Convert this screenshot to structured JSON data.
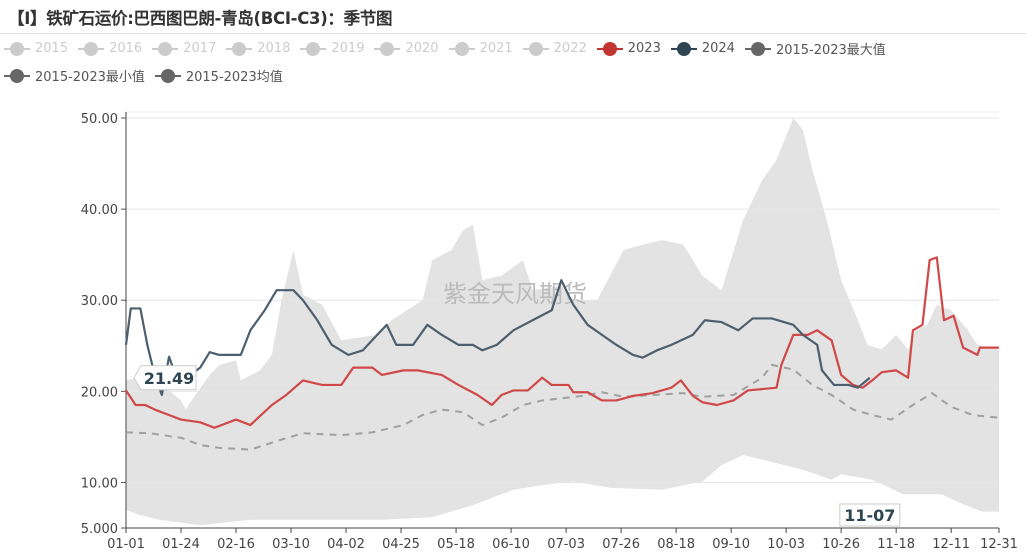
{
  "title": "【I】铁矿石运价:巴西图巴朗-青岛(BCI-C3)：季节图",
  "watermark": "紫金天风期货",
  "legend": [
    {
      "label": "2015",
      "color": "#cccccc",
      "active": false
    },
    {
      "label": "2016",
      "color": "#cccccc",
      "active": false
    },
    {
      "label": "2017",
      "color": "#cccccc",
      "active": false
    },
    {
      "label": "2018",
      "color": "#cccccc",
      "active": false
    },
    {
      "label": "2019",
      "color": "#cccccc",
      "active": false
    },
    {
      "label": "2020",
      "color": "#cccccc",
      "active": false
    },
    {
      "label": "2021",
      "color": "#cccccc",
      "active": false
    },
    {
      "label": "2022",
      "color": "#cccccc",
      "active": false
    },
    {
      "label": "2023",
      "color": "#c23531",
      "active": true
    },
    {
      "label": "2024",
      "color": "#2f4554",
      "active": true
    },
    {
      "label": "2015-2023最大值",
      "color": "#666666",
      "active": true
    },
    {
      "label": "2015-2023最小值",
      "color": "#666666",
      "active": true
    },
    {
      "label": "2015-2023均值",
      "color": "#666666",
      "active": true
    }
  ],
  "crosshair": {
    "x_label": "11-07",
    "y_label": "21.49"
  },
  "chart_data": {
    "type": "line",
    "title": "【I】铁矿石运价:巴西图巴朗-青岛(BCI-C3)：季节图",
    "xlabel": "",
    "ylabel": "",
    "ylim": [
      5,
      50
    ],
    "xlim": [
      "01-01",
      "12-31"
    ],
    "y_ticks": [
      "5.000",
      "10.00",
      "20.00",
      "30.00",
      "40.00",
      "50.00"
    ],
    "y_tick_values": [
      5,
      10,
      20,
      30,
      40,
      50
    ],
    "x_ticks": [
      "01-01",
      "01-24",
      "02-16",
      "03-10",
      "04-02",
      "04-25",
      "05-18",
      "06-10",
      "07-03",
      "07-26",
      "08-18",
      "09-10",
      "10-03",
      "10-26",
      "11-18",
      "12-11",
      "12-31"
    ],
    "grid": true,
    "legend_placement": "top",
    "band": {
      "max": [
        [
          "01-01",
          21.2
        ],
        [
          "01-11",
          21.8
        ],
        [
          "01-19",
          20.1
        ],
        [
          "01-24",
          19.0
        ],
        [
          "01-26",
          18.0
        ],
        [
          "01-30",
          19.6
        ],
        [
          "02-05",
          21.8
        ],
        [
          "02-09",
          22.9
        ],
        [
          "02-16",
          23.4
        ],
        [
          "02-18",
          21.2
        ],
        [
          "02-26",
          22.3
        ],
        [
          "03-02",
          24.0
        ],
        [
          "03-06",
          30.0
        ],
        [
          "03-11",
          35.5
        ],
        [
          "03-15",
          30.6
        ],
        [
          "03-23",
          29.5
        ],
        [
          "03-31",
          25.6
        ],
        [
          "04-15",
          26.2
        ],
        [
          "04-21",
          27.8
        ],
        [
          "05-04",
          30.0
        ],
        [
          "05-08",
          34.4
        ],
        [
          "05-16",
          35.5
        ],
        [
          "05-21",
          37.7
        ],
        [
          "05-25",
          38.3
        ],
        [
          "05-29",
          32.2
        ],
        [
          "06-06",
          32.7
        ],
        [
          "06-15",
          34.4
        ],
        [
          "06-19",
          31.1
        ],
        [
          "07-01",
          31.6
        ],
        [
          "07-06",
          30.0
        ],
        [
          "07-16",
          30.0
        ],
        [
          "07-27",
          35.5
        ],
        [
          "08-04",
          36.1
        ],
        [
          "08-12",
          36.6
        ],
        [
          "08-21",
          36.1
        ],
        [
          "08-29",
          32.7
        ],
        [
          "09-06",
          31.1
        ],
        [
          "09-15",
          38.8
        ],
        [
          "09-23",
          43.2
        ],
        [
          "09-29",
          45.4
        ],
        [
          "10-06",
          50.0
        ],
        [
          "10-10",
          48.7
        ],
        [
          "10-14",
          44.3
        ],
        [
          "10-20",
          38.8
        ],
        [
          "10-26",
          32.2
        ],
        [
          "11-02",
          27.8
        ],
        [
          "11-06",
          25.1
        ],
        [
          "11-12",
          24.6
        ],
        [
          "11-18",
          26.2
        ],
        [
          "11-23",
          24.6
        ],
        [
          "11-26",
          26.7
        ],
        [
          "12-01",
          27.3
        ],
        [
          "12-05",
          29.5
        ],
        [
          "12-11",
          28.9
        ],
        [
          "12-18",
          26.7
        ],
        [
          "12-22",
          25.1
        ],
        [
          "12-31",
          24.6
        ]
      ],
      "min": [
        [
          "01-01",
          7.0
        ],
        [
          "01-07",
          6.4
        ],
        [
          "01-15",
          5.9
        ],
        [
          "02-01",
          5.3
        ],
        [
          "02-22",
          5.9
        ],
        [
          "03-15",
          5.9
        ],
        [
          "04-17",
          5.9
        ],
        [
          "05-08",
          6.2
        ],
        [
          "05-25",
          7.5
        ],
        [
          "06-02",
          8.3
        ],
        [
          "06-11",
          9.2
        ],
        [
          "06-23",
          9.7
        ],
        [
          "07-06",
          10.1
        ],
        [
          "07-22",
          9.4
        ],
        [
          "08-12",
          9.2
        ],
        [
          "08-29",
          10.1
        ],
        [
          "09-06",
          11.9
        ],
        [
          "09-15",
          13.0
        ],
        [
          "09-23",
          12.5
        ],
        [
          "10-10",
          11.4
        ],
        [
          "10-22",
          10.3
        ],
        [
          "10-26",
          10.9
        ],
        [
          "11-08",
          10.3
        ],
        [
          "11-21",
          8.7
        ],
        [
          "12-07",
          8.7
        ],
        [
          "12-16",
          7.6
        ],
        [
          "12-24",
          6.8
        ],
        [
          "12-31",
          6.8
        ]
      ]
    },
    "series": [
      {
        "name": "2015-2023均值",
        "color": "#a0a0a0",
        "dashed": true,
        "points": [
          [
            "01-01",
            15.5
          ],
          [
            "01-11",
            15.4
          ],
          [
            "01-24",
            14.9
          ],
          [
            "02-01",
            14.1
          ],
          [
            "02-09",
            13.8
          ],
          [
            "02-22",
            13.6
          ],
          [
            "03-06",
            14.7
          ],
          [
            "03-15",
            15.4
          ],
          [
            "03-31",
            15.2
          ],
          [
            "04-13",
            15.5
          ],
          [
            "04-26",
            16.3
          ],
          [
            "05-04",
            17.4
          ],
          [
            "05-12",
            18.0
          ],
          [
            "05-21",
            17.7
          ],
          [
            "05-29",
            16.3
          ],
          [
            "06-06",
            17.1
          ],
          [
            "06-15",
            18.5
          ],
          [
            "06-23",
            19.0
          ],
          [
            "07-10",
            19.5
          ],
          [
            "07-18",
            19.9
          ],
          [
            "07-27",
            19.4
          ],
          [
            "08-21",
            19.8
          ],
          [
            "08-29",
            19.4
          ],
          [
            "09-11",
            19.6
          ],
          [
            "09-23",
            21.5
          ],
          [
            "09-27",
            22.9
          ],
          [
            "10-06",
            22.4
          ],
          [
            "10-14",
            20.7
          ],
          [
            "10-22",
            19.6
          ],
          [
            "10-31",
            18.0
          ],
          [
            "11-08",
            17.4
          ],
          [
            "11-16",
            16.9
          ],
          [
            "11-25",
            18.5
          ],
          [
            "12-03",
            19.8
          ],
          [
            "12-11",
            18.3
          ],
          [
            "12-20",
            17.4
          ],
          [
            "12-31",
            17.1
          ]
        ]
      },
      {
        "name": "2023",
        "color": "#d04848",
        "points": [
          [
            "01-01",
            20.1
          ],
          [
            "01-05",
            18.5
          ],
          [
            "01-09",
            18.5
          ],
          [
            "01-13",
            18.0
          ],
          [
            "01-19",
            17.4
          ],
          [
            "01-24",
            16.9
          ],
          [
            "02-01",
            16.6
          ],
          [
            "02-07",
            16.0
          ],
          [
            "02-16",
            16.9
          ],
          [
            "02-22",
            16.3
          ],
          [
            "03-02",
            18.5
          ],
          [
            "03-08",
            19.6
          ],
          [
            "03-15",
            21.2
          ],
          [
            "03-23",
            20.7
          ],
          [
            "03-31",
            20.7
          ],
          [
            "04-05",
            22.6
          ],
          [
            "04-13",
            22.6
          ],
          [
            "04-17",
            21.8
          ],
          [
            "04-26",
            22.3
          ],
          [
            "05-02",
            22.3
          ],
          [
            "05-12",
            21.8
          ],
          [
            "05-19",
            20.7
          ],
          [
            "05-27",
            19.6
          ],
          [
            "06-02",
            18.5
          ],
          [
            "06-06",
            19.6
          ],
          [
            "06-11",
            20.1
          ],
          [
            "06-17",
            20.1
          ],
          [
            "06-23",
            21.5
          ],
          [
            "06-27",
            20.7
          ],
          [
            "07-04",
            20.7
          ],
          [
            "07-06",
            19.9
          ],
          [
            "07-12",
            19.9
          ],
          [
            "07-18",
            19.0
          ],
          [
            "07-24",
            19.0
          ],
          [
            "07-31",
            19.5
          ],
          [
            "08-08",
            19.8
          ],
          [
            "08-16",
            20.4
          ],
          [
            "08-20",
            21.2
          ],
          [
            "08-25",
            19.5
          ],
          [
            "08-29",
            18.8
          ],
          [
            "09-04",
            18.5
          ],
          [
            "09-11",
            19.0
          ],
          [
            "09-17",
            20.1
          ],
          [
            "09-29",
            20.4
          ],
          [
            "10-01",
            22.9
          ],
          [
            "10-06",
            26.2
          ],
          [
            "10-12",
            26.2
          ],
          [
            "10-16",
            26.7
          ],
          [
            "10-22",
            25.6
          ],
          [
            "10-26",
            21.8
          ],
          [
            "10-31",
            20.7
          ],
          [
            "11-04",
            20.4
          ],
          [
            "11-08",
            21.2
          ],
          [
            "11-12",
            22.1
          ],
          [
            "11-18",
            22.3
          ],
          [
            "11-23",
            21.5
          ],
          [
            "11-25",
            26.7
          ],
          [
            "11-29",
            27.3
          ],
          [
            "12-02",
            34.4
          ],
          [
            "12-05",
            34.7
          ],
          [
            "12-08",
            27.8
          ],
          [
            "12-12",
            28.3
          ],
          [
            "12-16",
            24.8
          ],
          [
            "12-22",
            24.0
          ],
          [
            "12-23",
            24.8
          ],
          [
            "12-31",
            24.8
          ]
        ]
      },
      {
        "name": "2024",
        "color": "#4d5f6e",
        "points": [
          [
            "01-01",
            25.1
          ],
          [
            "01-03",
            29.1
          ],
          [
            "01-07",
            29.1
          ],
          [
            "01-10",
            25.0
          ],
          [
            "01-13",
            21.8
          ],
          [
            "01-16",
            19.6
          ],
          [
            "01-19",
            23.8
          ],
          [
            "01-21",
            22.3
          ],
          [
            "01-24",
            21.0
          ],
          [
            "01-28",
            21.8
          ],
          [
            "02-01",
            22.6
          ],
          [
            "02-05",
            24.3
          ],
          [
            "02-09",
            24.0
          ],
          [
            "02-18",
            24.0
          ],
          [
            "02-22",
            26.7
          ],
          [
            "02-28",
            28.9
          ],
          [
            "03-04",
            31.1
          ],
          [
            "03-11",
            31.1
          ],
          [
            "03-15",
            30.0
          ],
          [
            "03-21",
            27.8
          ],
          [
            "03-27",
            25.1
          ],
          [
            "04-03",
            24.0
          ],
          [
            "04-09",
            24.5
          ],
          [
            "04-15",
            26.2
          ],
          [
            "04-19",
            27.3
          ],
          [
            "04-23",
            25.1
          ],
          [
            "04-30",
            25.1
          ],
          [
            "05-06",
            27.3
          ],
          [
            "05-12",
            26.2
          ],
          [
            "05-19",
            25.1
          ],
          [
            "05-25",
            25.1
          ],
          [
            "05-29",
            24.5
          ],
          [
            "06-04",
            25.1
          ],
          [
            "06-11",
            26.7
          ],
          [
            "06-19",
            27.8
          ],
          [
            "06-27",
            28.9
          ],
          [
            "07-01",
            32.2
          ],
          [
            "07-06",
            29.5
          ],
          [
            "07-12",
            27.3
          ],
          [
            "07-18",
            26.2
          ],
          [
            "07-24",
            25.1
          ],
          [
            "07-31",
            24.0
          ],
          [
            "08-04",
            23.7
          ],
          [
            "08-10",
            24.5
          ],
          [
            "08-16",
            25.1
          ],
          [
            "08-25",
            26.2
          ],
          [
            "08-30",
            27.8
          ],
          [
            "09-06",
            27.6
          ],
          [
            "09-13",
            26.7
          ],
          [
            "09-19",
            28.0
          ],
          [
            "09-27",
            28.0
          ],
          [
            "10-06",
            27.3
          ],
          [
            "10-10",
            26.2
          ],
          [
            "10-16",
            25.1
          ],
          [
            "10-18",
            22.3
          ],
          [
            "10-23",
            20.7
          ],
          [
            "10-29",
            20.7
          ],
          [
            "11-02",
            20.4
          ],
          [
            "11-07",
            21.49
          ]
        ]
      }
    ]
  }
}
